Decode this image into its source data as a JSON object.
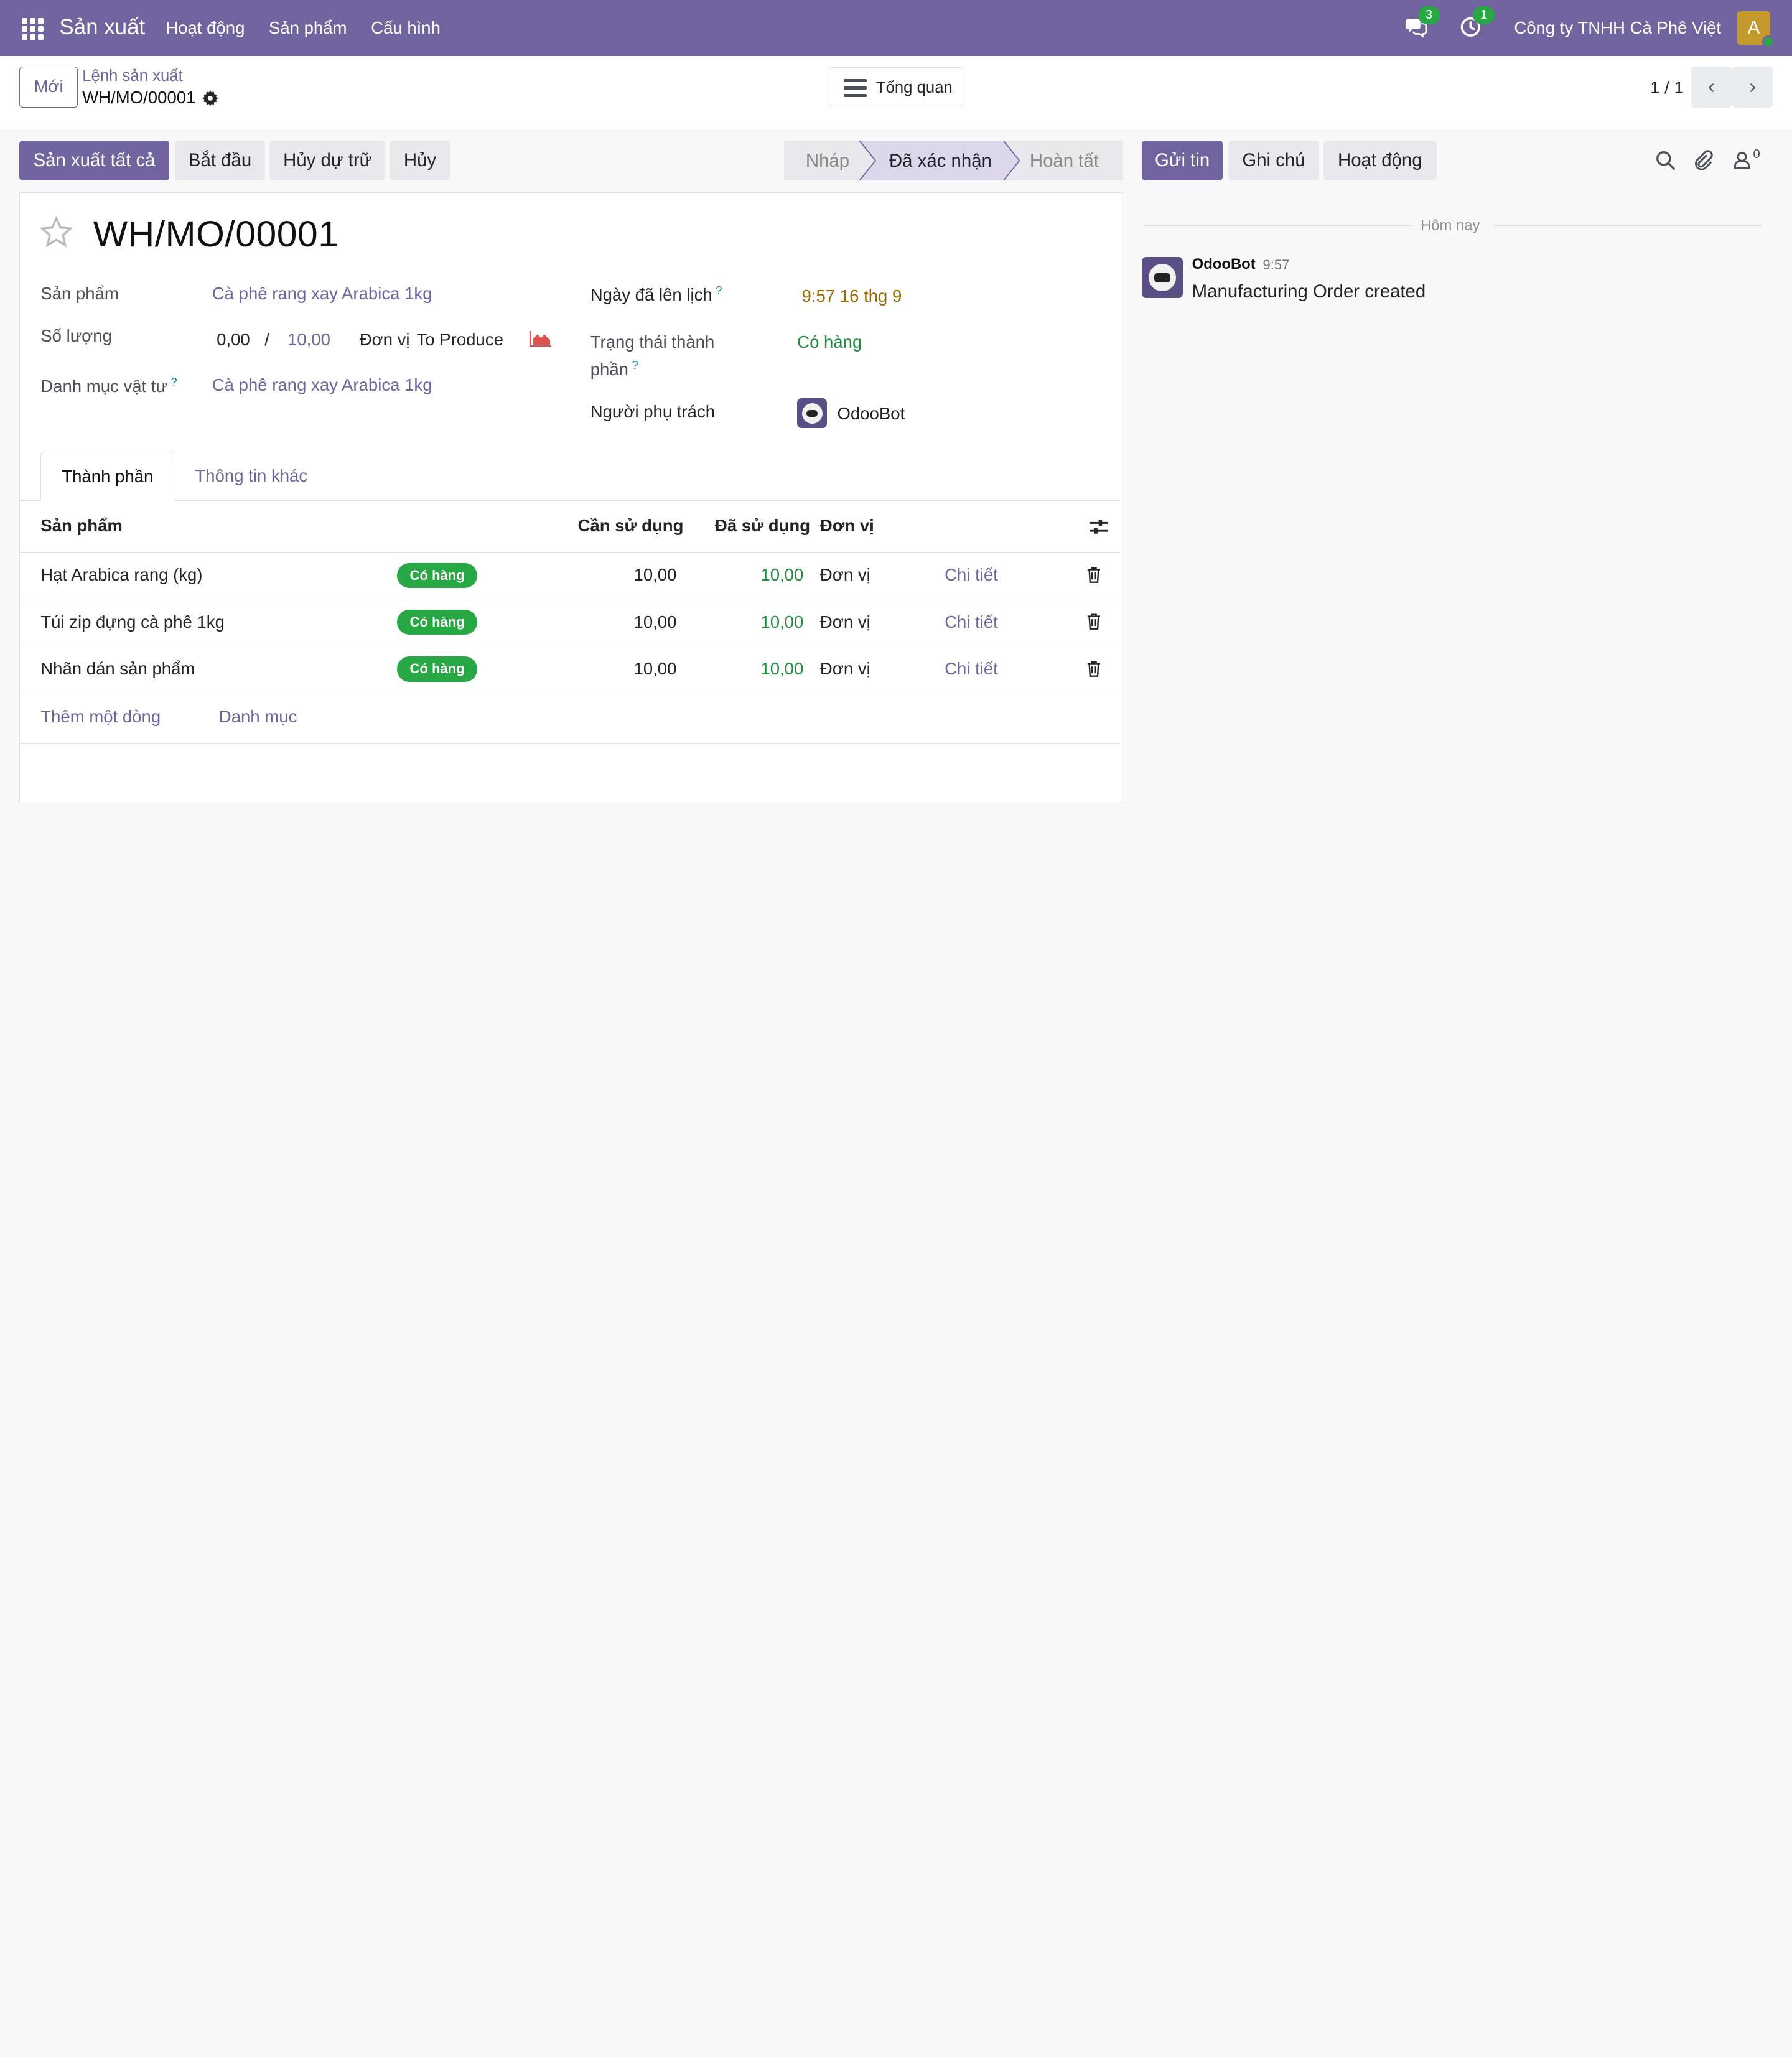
{
  "navbar": {
    "app_name": "Sản xuất",
    "menu": [
      "Hoạt động",
      "Sản phẩm",
      "Cấu hình"
    ],
    "messages_count": "3",
    "activities_count": "1",
    "company": "Công ty TNHH Cà Phê Việt",
    "user_initial": "A",
    "accent_color": "#71639e"
  },
  "control_panel": {
    "new_button": "Mới",
    "breadcrumb_parent": "Lệnh sản xuất",
    "breadcrumb_current": "WH/MO/00001",
    "overview_button": "Tổng quan",
    "pager": "1 / 1"
  },
  "actions": {
    "produce_all": "Sản xuất tất cả",
    "start": "Bắt đầu",
    "unreserve": "Hủy dự trữ",
    "cancel": "Hủy"
  },
  "statusbar": {
    "stages": [
      "Nháp",
      "Đã xác nhận",
      "Hoàn tất"
    ],
    "current": "Đã xác nhận"
  },
  "form": {
    "title": "WH/MO/00001",
    "product_label": "Sản phẩm",
    "product_value": "Cà phê rang xay Arabica 1kg",
    "quantity_label": "Số lượng",
    "quantity_produced": "0,00",
    "quantity_separator": "/",
    "quantity_target": "10,00",
    "quantity_uom": "Đơn vị",
    "to_produce": "To Produce",
    "bom_label": "Danh mục vật tư",
    "bom_value": "Cà phê rang xay Arabica 1kg",
    "scheduled_label": "Ngày đã lên lịch",
    "scheduled_value": "9:57 16 thg 9",
    "component_status_label_1": "Trạng thái thành",
    "component_status_label_2": "phần",
    "component_status_value": "Có hàng",
    "responsible_label": "Người phụ trách",
    "responsible_value": "OdooBot",
    "help_mark": "?"
  },
  "tabs": [
    "Thành phần",
    "Thông tin khác"
  ],
  "components_table": {
    "headers": {
      "product": "Sản phẩm",
      "to_consume": "Cần sử dụng",
      "consumed": "Đã sử dụng",
      "uom": "Đơn vị"
    },
    "rows": [
      {
        "product": "Hạt Arabica rang (kg)",
        "status": "Có hàng",
        "to_consume": "10,00",
        "consumed": "10,00",
        "uom": "Đơn vị",
        "details": "Chi tiết"
      },
      {
        "product": "Túi zip đựng cà phê 1kg",
        "status": "Có hàng",
        "to_consume": "10,00",
        "consumed": "10,00",
        "uom": "Đơn vị",
        "details": "Chi tiết"
      },
      {
        "product": "Nhãn dán sản phẩm",
        "status": "Có hàng",
        "to_consume": "10,00",
        "consumed": "10,00",
        "uom": "Đơn vị",
        "details": "Chi tiết"
      }
    ],
    "add_line": "Thêm một dòng",
    "add_section": "Danh mục"
  },
  "chatter": {
    "send_message": "Gửi tin",
    "log_note": "Ghi chú",
    "activities": "Hoạt động",
    "followers_count": "0",
    "date_separator": "Hôm nay",
    "messages": [
      {
        "author": "OdooBot",
        "time": "9:57",
        "body": "Manufacturing Order created"
      }
    ]
  }
}
